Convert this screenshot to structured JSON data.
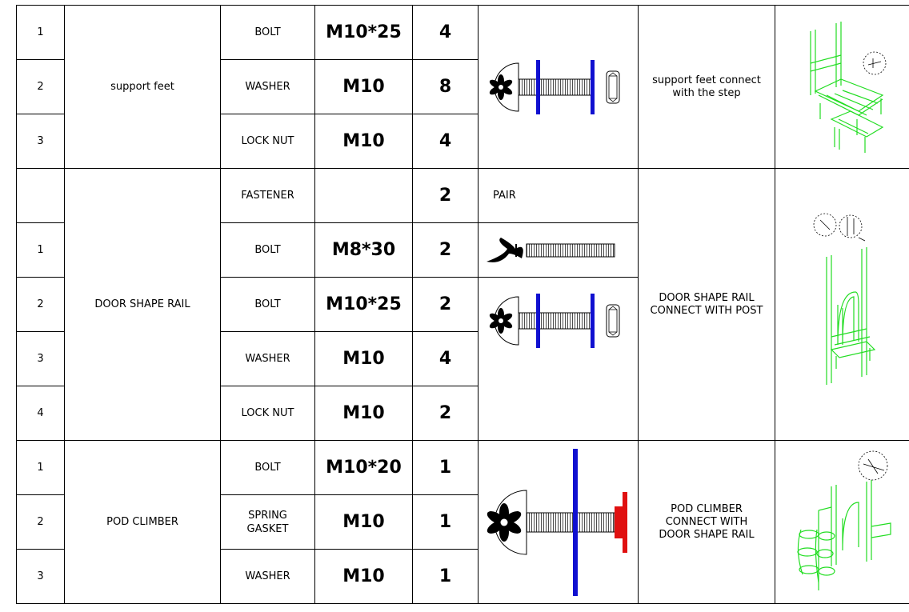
{
  "table": {
    "groups": [
      {
        "name": "support feet",
        "note": "support feet connect with the step",
        "rows": [
          {
            "no": "1",
            "part": "BOLT",
            "spec": "M10*25",
            "qty": 4
          },
          {
            "no": "2",
            "part": "WASHER",
            "spec": "M10",
            "qty": 8
          },
          {
            "no": "3",
            "part": "LOCK NUT",
            "spec": "M10",
            "qty": 4
          }
        ]
      },
      {
        "name": "DOOR SHAPE RAIL",
        "note": "DOOR SHAPE RAIL CONNECT WITH POST",
        "rows": [
          {
            "part": "FASTENER",
            "qty": 2,
            "remark": "PAIR"
          },
          {
            "no": "1",
            "part": "BOLT",
            "spec": "M8*30",
            "qty": 2
          },
          {
            "no": "2",
            "part": "BOLT",
            "spec": "M10*25",
            "qty": 2
          },
          {
            "no": "3",
            "part": "WASHER",
            "spec": "M10",
            "qty": 4
          },
          {
            "no": "4",
            "part": "LOCK NUT",
            "spec": "M10",
            "qty": 2
          }
        ]
      },
      {
        "name": "POD  CLIMBER",
        "note": "POD  CLIMBER CONNECT WITH DOOR SHAPE RAIL",
        "rows": [
          {
            "no": "1",
            "part": "BOLT",
            "spec": "M10*20",
            "qty": 1
          },
          {
            "no": "2",
            "part": "SPRING GASKET",
            "spec": "M10",
            "qty": 1
          },
          {
            "no": "3",
            "part": "WASHER",
            "spec": "M10",
            "qty": 1
          }
        ]
      }
    ]
  }
}
